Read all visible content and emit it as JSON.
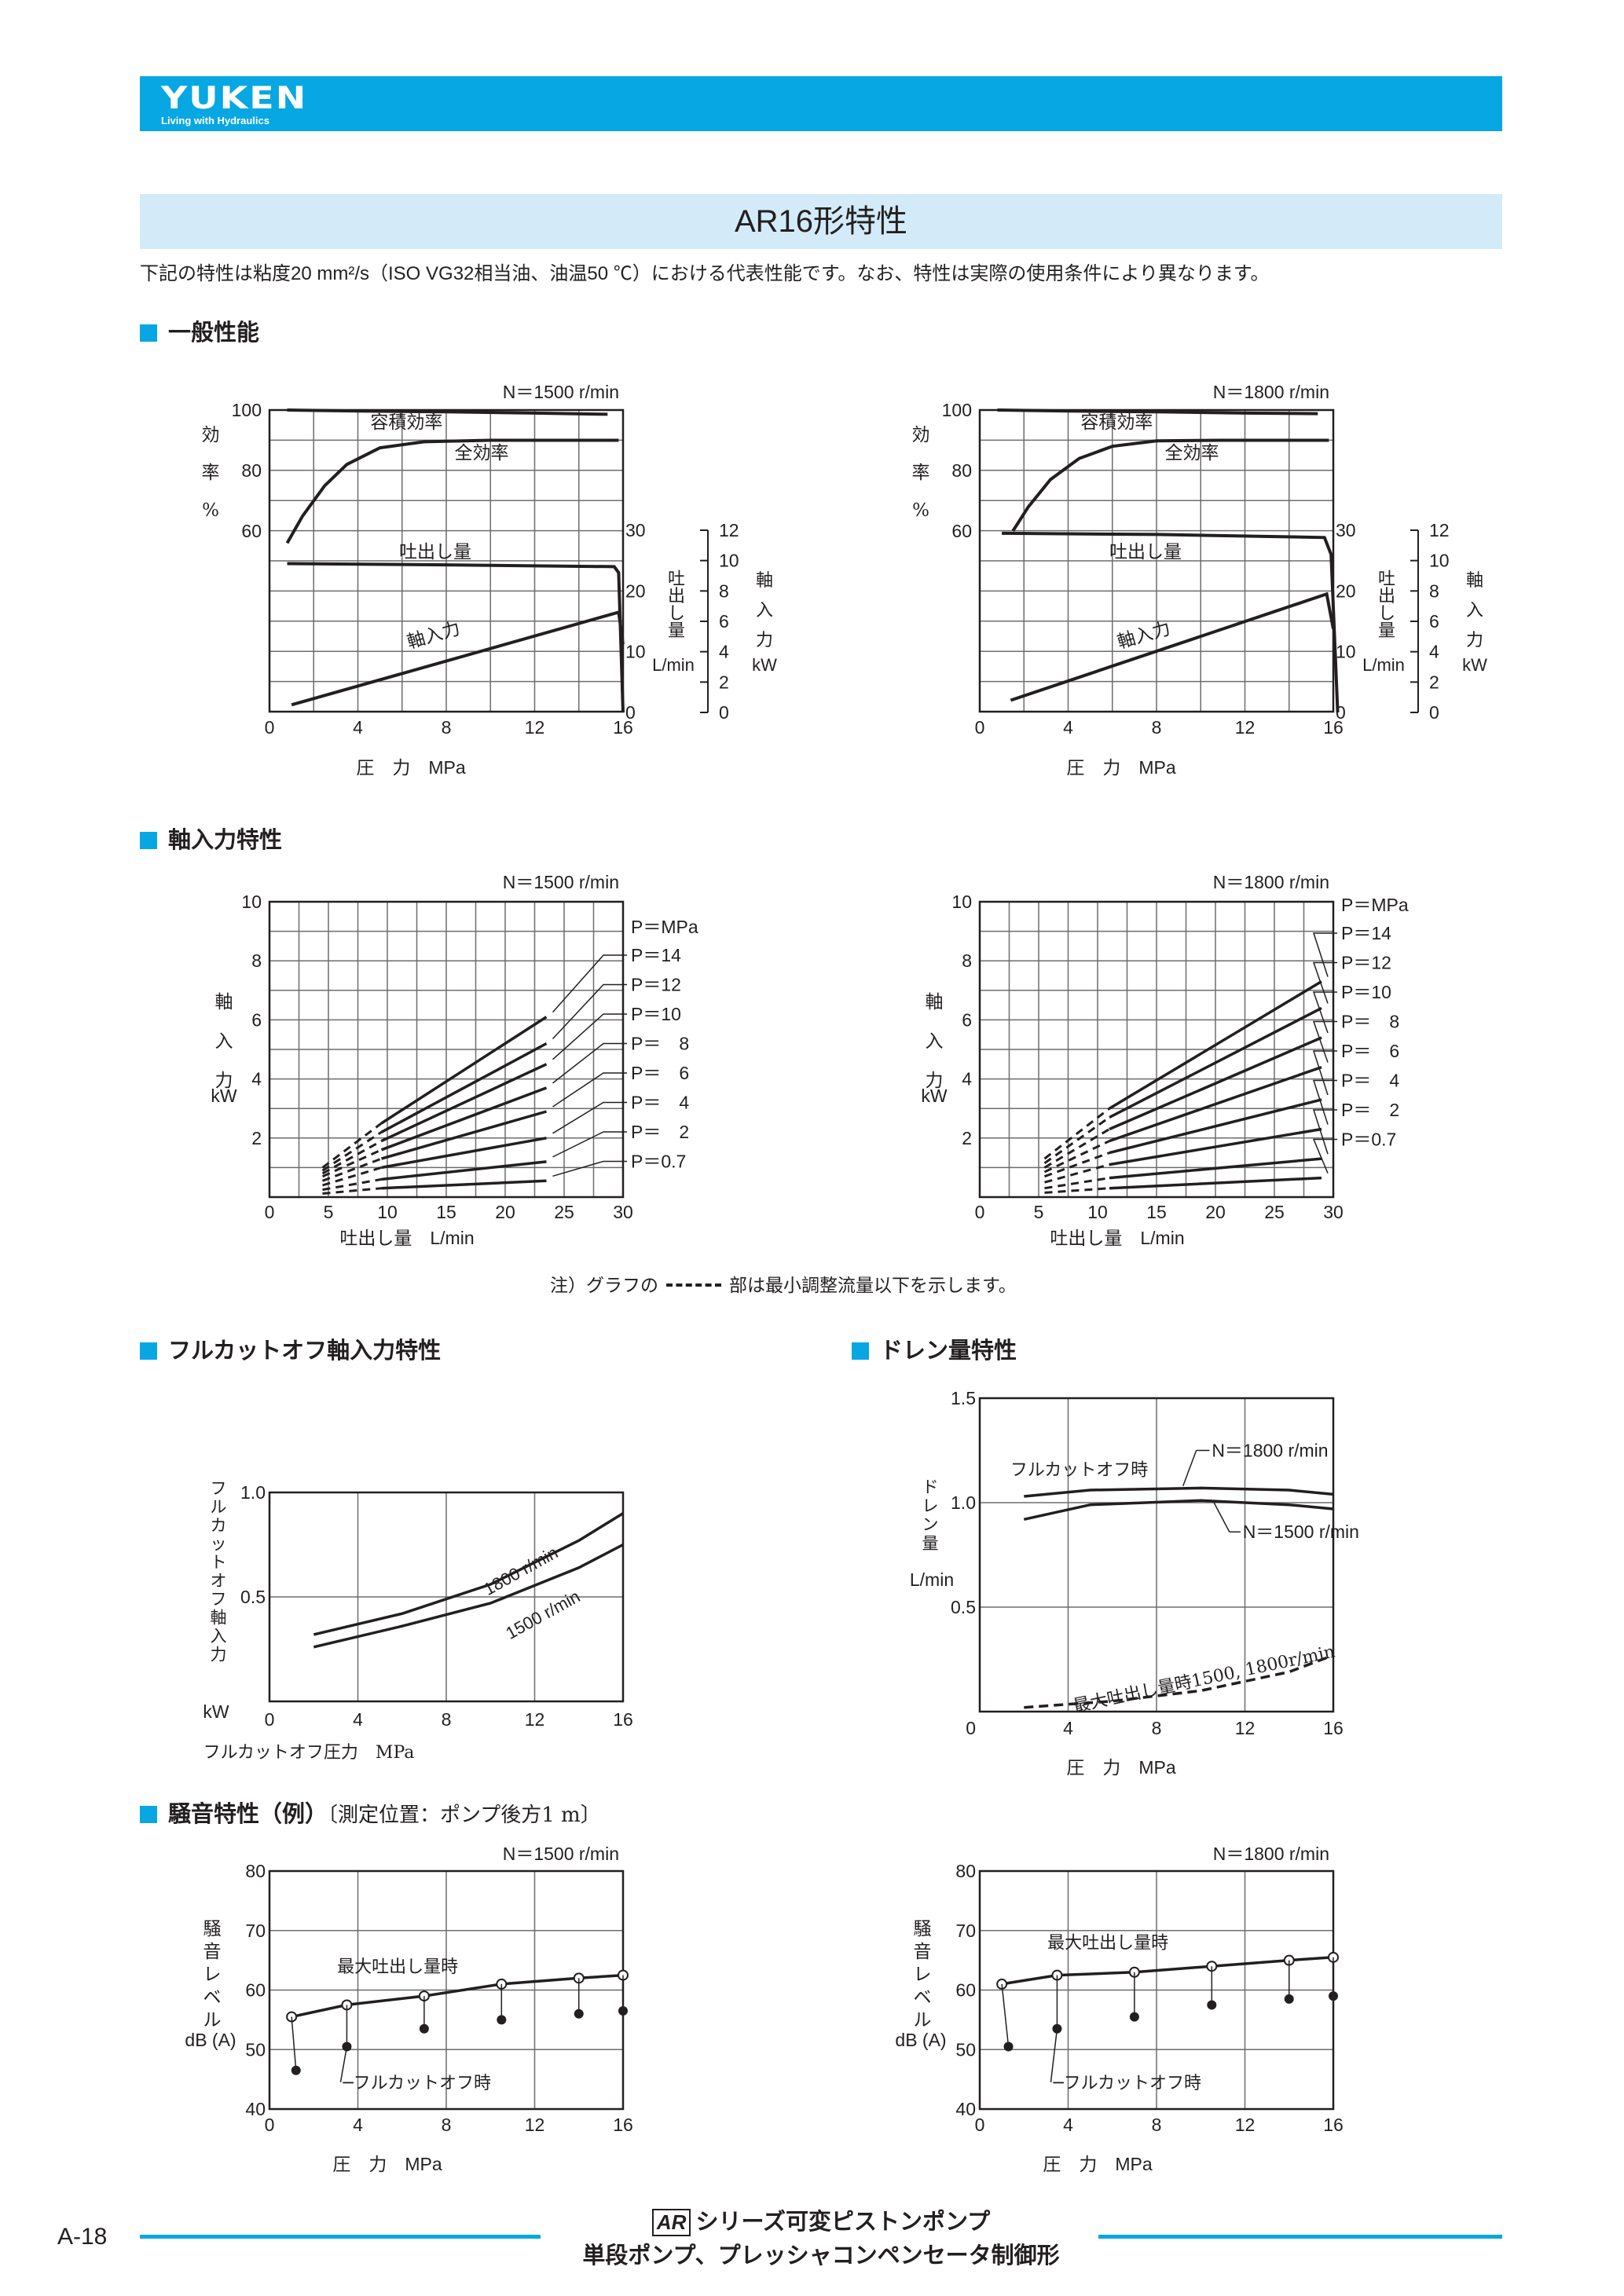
{
  "header": {
    "logo_text": "YUKEN",
    "logo_tagline": "Living with Hydraulics",
    "bar_color": "#06a7e2"
  },
  "title": "AR16形特性",
  "intro": "下記の特性は粘度20 mm²/s（ISO VG32相当油、油温50 ℃）における代表性能です。なお、特性は実際の使用条件により異なります。",
  "sections": {
    "general": "一般性能",
    "shaft_input": "軸入力特性",
    "fullcut": "フルカットオフ軸入力特性",
    "drain": "ドレン量特性",
    "noise": "騒音特性（例）",
    "noise_sub": "〔測定位置：ポンプ後方1 m〕"
  },
  "note": {
    "before": "注）グラフの",
    "after": "部は最小調整流量以下を示します。"
  },
  "footer": {
    "page": "A-18",
    "series": "シリーズ可変ピストンポンプ",
    "series_mark": "AR",
    "subtitle": "単段ポンプ、プレッシャコンペンセータ制御形"
  },
  "chart_data": [
    {
      "id": "general-1500",
      "type": "line",
      "speed_label": "N＝1500 r/min",
      "x": [
        0,
        4,
        8,
        12,
        16
      ],
      "xlabel": "圧　力　MPa",
      "xlim": [
        0,
        16
      ],
      "left_axis": {
        "label": [
          "効",
          "率",
          "%"
        ],
        "ticks": [
          60,
          80,
          100
        ]
      },
      "flow_axis": {
        "label": [
          "吐",
          "出",
          "し",
          "量"
        ],
        "unit": "L/min",
        "ticks": [
          0,
          10,
          20,
          30
        ]
      },
      "power_axis": {
        "label": [
          "軸",
          "入",
          "力"
        ],
        "unit": "kW",
        "ticks": [
          0,
          2,
          4,
          6,
          8,
          10,
          12
        ]
      },
      "series": [
        {
          "name": "容積効率",
          "axis": "efficiency",
          "points": [
            [
              0.8,
              100
            ],
            [
              4,
              99.7
            ],
            [
              8,
              99.4
            ],
            [
              12,
              99
            ],
            [
              15.3,
              98.6
            ]
          ]
        },
        {
          "name": "全効率",
          "axis": "efficiency",
          "points": [
            [
              0.8,
              56
            ],
            [
              1.5,
              65
            ],
            [
              2.5,
              75
            ],
            [
              3.5,
              82
            ],
            [
              5,
              87.5
            ],
            [
              7,
              89.5
            ],
            [
              10,
              90
            ],
            [
              15.8,
              90
            ]
          ]
        },
        {
          "name": "吐出し量",
          "axis": "flow",
          "points": [
            [
              0.8,
              24.5
            ],
            [
              8,
              24.3
            ],
            [
              15.6,
              24
            ],
            [
              15.8,
              23
            ],
            [
              16,
              0
            ]
          ]
        },
        {
          "name": "軸入力",
          "axis": "power",
          "points": [
            [
              1,
              0.5
            ],
            [
              15.8,
              6.6
            ],
            [
              16,
              4.5
            ]
          ]
        }
      ]
    },
    {
      "id": "general-1800",
      "type": "line",
      "speed_label": "N＝1800 r/min",
      "x": [
        0,
        4,
        8,
        12,
        16
      ],
      "xlabel": "圧　力　MPa",
      "xlim": [
        0,
        16
      ],
      "left_axis": {
        "label": [
          "効",
          "率",
          "%"
        ],
        "ticks": [
          60,
          80,
          100
        ]
      },
      "flow_axis": {
        "label": [
          "吐",
          "出",
          "し",
          "量"
        ],
        "unit": "L/min",
        "ticks": [
          0,
          10,
          20,
          30
        ]
      },
      "power_axis": {
        "label": [
          "軸",
          "入",
          "力"
        ],
        "unit": "kW",
        "ticks": [
          0,
          2,
          4,
          6,
          8,
          10,
          12
        ]
      },
      "series": [
        {
          "name": "容積効率",
          "axis": "efficiency",
          "points": [
            [
              0.8,
              100
            ],
            [
              4,
              99.7
            ],
            [
              8,
              99.4
            ],
            [
              12,
              99
            ],
            [
              15.3,
              98.8
            ]
          ]
        },
        {
          "name": "全効率",
          "axis": "efficiency",
          "points": [
            [
              1.5,
              60
            ],
            [
              2.2,
              68
            ],
            [
              3.2,
              77
            ],
            [
              4.5,
              84
            ],
            [
              6,
              88
            ],
            [
              8,
              89.8
            ],
            [
              11,
              90
            ],
            [
              15.8,
              90
            ]
          ]
        },
        {
          "name": "吐出し量",
          "axis": "flow",
          "points": [
            [
              1,
              29.5
            ],
            [
              8,
              29.3
            ],
            [
              15.6,
              28.8
            ],
            [
              15.9,
              26
            ],
            [
              16.2,
              0
            ]
          ]
        },
        {
          "name": "軸入力",
          "axis": "power",
          "points": [
            [
              1.4,
              0.8
            ],
            [
              15.7,
              7.8
            ],
            [
              16,
              5.5
            ]
          ]
        }
      ]
    },
    {
      "id": "shaft-1500",
      "type": "line",
      "speed_label": "N＝1500 r/min",
      "xlabel": "吐出し量　L/min",
      "xticks": [
        0,
        5,
        10,
        15,
        20,
        25,
        30
      ],
      "xlim": [
        0,
        30
      ],
      "ylabel": [
        "軸",
        "入",
        "力",
        "kW"
      ],
      "yticks": [
        2,
        4,
        6,
        8,
        10
      ],
      "ylim": [
        0,
        10
      ],
      "legend_header": "P＝MPa",
      "series": [
        {
          "name": "P＝14",
          "pressure": 14,
          "start": [
            4.5,
            1.0
          ],
          "dash_end": [
            9.5,
            2.5
          ],
          "end": [
            23.5,
            6.1
          ]
        },
        {
          "name": "P＝12",
          "pressure": 12,
          "start": [
            4.5,
            0.9
          ],
          "dash_end": [
            9.5,
            2.2
          ],
          "end": [
            23.5,
            5.2
          ]
        },
        {
          "name": "P＝10",
          "pressure": 10,
          "start": [
            4.5,
            0.8
          ],
          "dash_end": [
            9.5,
            1.9
          ],
          "end": [
            23.5,
            4.5
          ]
        },
        {
          "name": "P＝　8",
          "pressure": 8,
          "start": [
            4.5,
            0.7
          ],
          "dash_end": [
            9.5,
            1.6
          ],
          "end": [
            23.5,
            3.7
          ]
        },
        {
          "name": "P＝　6",
          "pressure": 6,
          "start": [
            4.5,
            0.55
          ],
          "dash_end": [
            9.5,
            1.3
          ],
          "end": [
            23.5,
            2.9
          ]
        },
        {
          "name": "P＝　4",
          "pressure": 4,
          "start": [
            4.5,
            0.4
          ],
          "dash_end": [
            9.5,
            1.0
          ],
          "end": [
            23.5,
            2.0
          ]
        },
        {
          "name": "P＝　2",
          "pressure": 2,
          "start": [
            4.5,
            0.25
          ],
          "dash_end": [
            9.5,
            0.6
          ],
          "end": [
            23.5,
            1.2
          ]
        },
        {
          "name": "P＝0.7",
          "pressure": 0.7,
          "start": [
            4.5,
            0.12
          ],
          "dash_end": [
            9.5,
            0.3
          ],
          "end": [
            23.5,
            0.55
          ]
        }
      ]
    },
    {
      "id": "shaft-1800",
      "type": "line",
      "speed_label": "N＝1800 r/min",
      "xlabel": "吐出し量　L/min",
      "xticks": [
        0,
        5,
        10,
        15,
        20,
        25,
        30
      ],
      "xlim": [
        0,
        30
      ],
      "ylabel": [
        "軸",
        "入",
        "力",
        "kW"
      ],
      "yticks": [
        2,
        4,
        6,
        8,
        10
      ],
      "ylim": [
        0,
        10
      ],
      "legend_header": "P＝MPa",
      "series": [
        {
          "name": "P＝14",
          "pressure": 14,
          "start": [
            5.5,
            1.3
          ],
          "dash_end": [
            11,
            3.0
          ],
          "end": [
            29,
            7.3
          ]
        },
        {
          "name": "P＝12",
          "pressure": 12,
          "start": [
            5.5,
            1.15
          ],
          "dash_end": [
            11,
            2.7
          ],
          "end": [
            29,
            6.4
          ]
        },
        {
          "name": "P＝10",
          "pressure": 10,
          "start": [
            5.5,
            1.0
          ],
          "dash_end": [
            11,
            2.3
          ],
          "end": [
            29,
            5.4
          ]
        },
        {
          "name": "P＝　8",
          "pressure": 8,
          "start": [
            5.5,
            0.85
          ],
          "dash_end": [
            11,
            1.9
          ],
          "end": [
            29,
            4.4
          ]
        },
        {
          "name": "P＝　6",
          "pressure": 6,
          "start": [
            5.5,
            0.7
          ],
          "dash_end": [
            11,
            1.5
          ],
          "end": [
            29,
            3.3
          ]
        },
        {
          "name": "P＝　4",
          "pressure": 4,
          "start": [
            5.5,
            0.5
          ],
          "dash_end": [
            11,
            1.1
          ],
          "end": [
            29,
            2.3
          ]
        },
        {
          "name": "P＝　2",
          "pressure": 2,
          "start": [
            5.5,
            0.3
          ],
          "dash_end": [
            11,
            0.65
          ],
          "end": [
            29,
            1.3
          ]
        },
        {
          "name": "P＝0.7",
          "pressure": 0.7,
          "start": [
            5.5,
            0.15
          ],
          "dash_end": [
            11,
            0.3
          ],
          "end": [
            29,
            0.65
          ]
        }
      ]
    },
    {
      "id": "fullcut",
      "type": "line",
      "xlabel": "フルカットオフ圧力　MPa",
      "xticks": [
        0,
        4,
        8,
        12,
        16
      ],
      "xlim": [
        0,
        16
      ],
      "ylabel": [
        "フ",
        "ル",
        "カ",
        "ッ",
        "ト",
        "オ",
        "フ",
        "軸",
        "入",
        "力"
      ],
      "yunit": "kW",
      "yticks": [
        0.5,
        1.0
      ],
      "ylim": [
        0,
        1.0
      ],
      "series": [
        {
          "name": "1800 r/min",
          "points": [
            [
              2,
              0.32
            ],
            [
              6,
              0.42
            ],
            [
              10,
              0.56
            ],
            [
              14,
              0.77
            ],
            [
              16,
              0.9
            ]
          ]
        },
        {
          "name": "1500 r/min",
          "points": [
            [
              2,
              0.26
            ],
            [
              6,
              0.36
            ],
            [
              10,
              0.47
            ],
            [
              14,
              0.64
            ],
            [
              16,
              0.75
            ]
          ]
        }
      ]
    },
    {
      "id": "drain",
      "type": "line",
      "xlabel": "圧　力　MPa",
      "xticks": [
        0,
        4,
        8,
        12,
        16
      ],
      "xlim": [
        0,
        16
      ],
      "ylabel": [
        "ド",
        "レ",
        "ン",
        "量"
      ],
      "yunit": "L/min",
      "yticks": [
        0.5,
        1.0,
        1.5
      ],
      "ylim": [
        0,
        1.5
      ],
      "curve_label": "フルカットオフ時",
      "max_flow_label": "最大吐出し量時1500, 1800r/min",
      "series": [
        {
          "name": "N＝1800 r/min",
          "style": "solid",
          "points": [
            [
              2,
              1.03
            ],
            [
              5,
              1.06
            ],
            [
              10,
              1.07
            ],
            [
              14,
              1.06
            ],
            [
              16,
              1.04
            ]
          ]
        },
        {
          "name": "N＝1500 r/min",
          "style": "solid",
          "points": [
            [
              2,
              0.92
            ],
            [
              5,
              0.99
            ],
            [
              10,
              1.01
            ],
            [
              14,
              0.99
            ],
            [
              16,
              0.97
            ]
          ]
        },
        {
          "name": "",
          "style": "dashed",
          "points": [
            [
              2,
              0.02
            ],
            [
              6,
              0.05
            ],
            [
              10,
              0.1
            ],
            [
              14,
              0.19
            ],
            [
              16,
              0.27
            ]
          ]
        }
      ]
    },
    {
      "id": "noise-1500",
      "type": "scatter",
      "speed_label": "N＝1500 r/min",
      "xlabel": "圧　力　MPa",
      "xticks": [
        0,
        4,
        8,
        12,
        16
      ],
      "xlim": [
        0,
        16
      ],
      "ylabel": [
        "騒",
        "音",
        "レ",
        "ベ",
        "ル"
      ],
      "yunit": "dB (A)",
      "yticks": [
        40,
        50,
        60,
        70,
        80
      ],
      "ylim": [
        40,
        80
      ],
      "max_flow_label": "最大吐出し量時",
      "fullcut_label": "フルカットオフ時",
      "max_flow": [
        [
          1,
          55.5
        ],
        [
          3.5,
          57.5
        ],
        [
          7,
          59
        ],
        [
          10.5,
          61
        ],
        [
          14,
          62
        ],
        [
          16,
          62.5
        ]
      ],
      "fullcut": [
        [
          1.2,
          46.5
        ],
        [
          3.5,
          50.5
        ],
        [
          7,
          53.5
        ],
        [
          10.5,
          55
        ],
        [
          14,
          56
        ],
        [
          16,
          56.5
        ]
      ]
    },
    {
      "id": "noise-1800",
      "type": "scatter",
      "speed_label": "N＝1800 r/min",
      "xlabel": "圧　力　MPa",
      "xticks": [
        0,
        4,
        8,
        12,
        16
      ],
      "xlim": [
        0,
        16
      ],
      "ylabel": [
        "騒",
        "音",
        "レ",
        "ベ",
        "ル"
      ],
      "yunit": "dB (A)",
      "yticks": [
        40,
        50,
        60,
        70,
        80
      ],
      "ylim": [
        40,
        80
      ],
      "max_flow_label": "最大吐出し量時",
      "fullcut_label": "フルカットオフ時",
      "max_flow": [
        [
          1,
          61
        ],
        [
          3.5,
          62.5
        ],
        [
          7,
          63
        ],
        [
          10.5,
          64
        ],
        [
          14,
          65
        ],
        [
          16,
          65.5
        ]
      ],
      "fullcut": [
        [
          1.3,
          50.5
        ],
        [
          3.5,
          53.5
        ],
        [
          7,
          55.5
        ],
        [
          10.5,
          57.5
        ],
        [
          14,
          58.5
        ],
        [
          16,
          59
        ]
      ]
    }
  ]
}
